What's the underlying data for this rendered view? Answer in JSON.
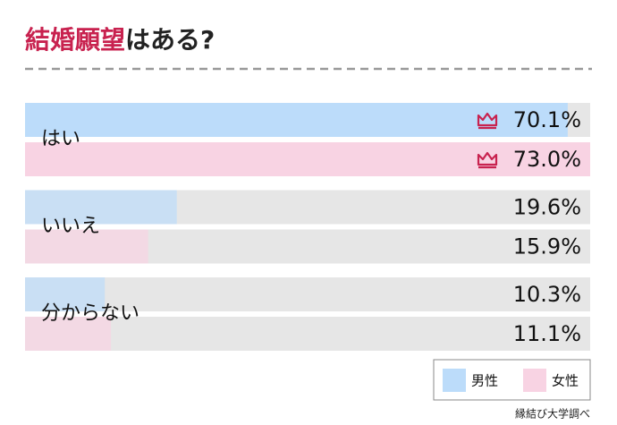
{
  "chart_data": {
    "type": "hbar",
    "title": [
      "結婚願望",
      "はある?"
    ],
    "categories": [
      "はい",
      "いいえ",
      "分からない"
    ],
    "series": [
      {
        "name": "男性",
        "color": "#bcdcfa",
        "values": [
          70.1,
          19.6,
          10.3
        ],
        "value_labels": [
          "70.1%",
          "19.6%",
          "10.3%"
        ]
      },
      {
        "name": "女性",
        "color": "#f8d3e3",
        "values": [
          73.0,
          15.9,
          11.1
        ],
        "value_labels": [
          "73.0%",
          "15.9%",
          "11.1%"
        ]
      }
    ],
    "xlim": [
      0,
      73
    ],
    "source": "縁結び大学調べ"
  }
}
